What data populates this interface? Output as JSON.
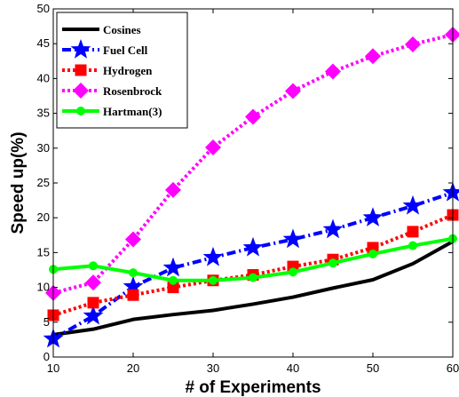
{
  "chart_data": {
    "type": "line",
    "title": "",
    "xlabel": "# of Experiments",
    "ylabel": "Speed up(%)",
    "xlim": [
      10,
      60
    ],
    "ylim": [
      0,
      50
    ],
    "xticks": [
      10,
      20,
      30,
      40,
      50,
      60
    ],
    "yticks": [
      0,
      5,
      10,
      15,
      20,
      25,
      30,
      35,
      40,
      45,
      50
    ],
    "grid": false,
    "legend_position": "top-left",
    "x": [
      10,
      15,
      20,
      25,
      30,
      35,
      40,
      45,
      50,
      55,
      60
    ],
    "series": [
      {
        "name": "Cosines",
        "values": [
          3.2,
          4.0,
          5.4,
          6.1,
          6.7,
          7.6,
          8.6,
          9.9,
          11.1,
          13.4,
          16.6
        ],
        "color": "#000000",
        "dash": "solid",
        "marker": "none"
      },
      {
        "name": "Fuel Cell",
        "values": [
          2.6,
          5.9,
          10.1,
          12.8,
          14.3,
          15.7,
          16.9,
          18.3,
          20.0,
          21.7,
          23.6
        ],
        "color": "#0000ff",
        "dash": "dashdot",
        "marker": "star"
      },
      {
        "name": "Hydrogen",
        "values": [
          6.0,
          7.8,
          8.9,
          10.0,
          11.0,
          11.8,
          13.0,
          14.0,
          15.7,
          18.0,
          20.4
        ],
        "color": "#ff0000",
        "dash": "dotted",
        "marker": "square"
      },
      {
        "name": "Rosenbrock",
        "values": [
          9.2,
          10.7,
          16.9,
          24.0,
          30.1,
          34.5,
          38.2,
          41.0,
          43.2,
          44.9,
          46.3
        ],
        "color": "#ff00ff",
        "dash": "dotted",
        "marker": "diamond"
      },
      {
        "name": "Hartman(3)",
        "values": [
          12.6,
          13.1,
          12.1,
          11.0,
          11.0,
          11.4,
          12.2,
          13.5,
          14.8,
          16.0,
          17.0
        ],
        "color": "#00ff00",
        "dash": "solid",
        "marker": "circle"
      }
    ]
  }
}
